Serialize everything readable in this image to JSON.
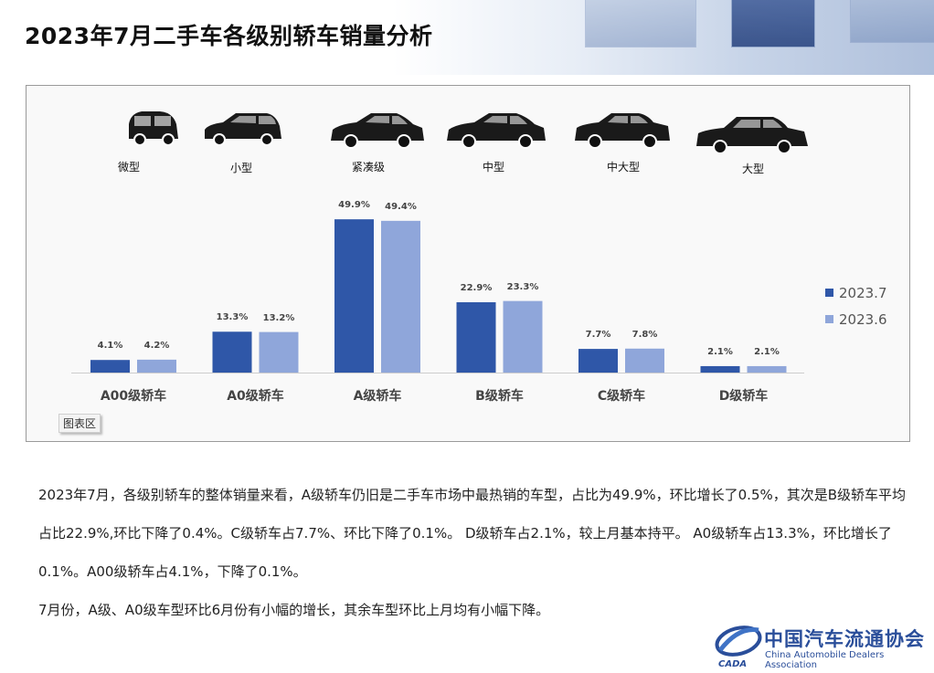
{
  "title": "2023年7月二手车各级别轿车销量分析",
  "car_types": [
    "微型",
    "小型",
    "紧凑级",
    "中型",
    "中大型",
    "大型"
  ],
  "chart_tag": "图表区",
  "chart_data": {
    "type": "bar",
    "categories": [
      "A00级轿车",
      "A0级轿车",
      "A级轿车",
      "B级轿车",
      "C级轿车",
      "D级轿车"
    ],
    "series": [
      {
        "name": "2023.7",
        "values": [
          4.1,
          13.3,
          49.9,
          22.9,
          7.7,
          2.1
        ],
        "labels": [
          "4.1%",
          "13.3%",
          "49.9%",
          "22.9%",
          "7.7%",
          "2.1%"
        ],
        "color": "#2f57a8"
      },
      {
        "name": "2023.6",
        "values": [
          4.2,
          13.2,
          49.4,
          23.3,
          7.8,
          2.1
        ],
        "labels": [
          "4.2%",
          "13.2%",
          "49.4%",
          "23.3%",
          "7.8%",
          "2.1%"
        ],
        "color": "#8fa6da"
      }
    ],
    "ylim": [
      0,
      55
    ],
    "legend": "right"
  },
  "paragraphs": [
    "2023年7月，各级别轿车的整体销量来看，A级轿车仍旧是二手车市场中最热销的车型，占比为49.9%，环比增长了0.5%，其次是B级轿车平均占比22.9%,环比下降了0.4%。C级轿车占7.7%、环比下降了0.1%。 D级轿车占2.1%，较上月基本持平。 A0级轿车占13.3%，环比增长了0.1%。A00级轿车占4.1%，下降了0.1%。",
    "7月份，A级、A0级车型环比6月份有小幅的增长，其余车型环比上月均有小幅下降。"
  ],
  "logo": {
    "cn": "中国汽车流通协会",
    "en": "China Automobile Dealers Association",
    "mark": "CADA"
  }
}
